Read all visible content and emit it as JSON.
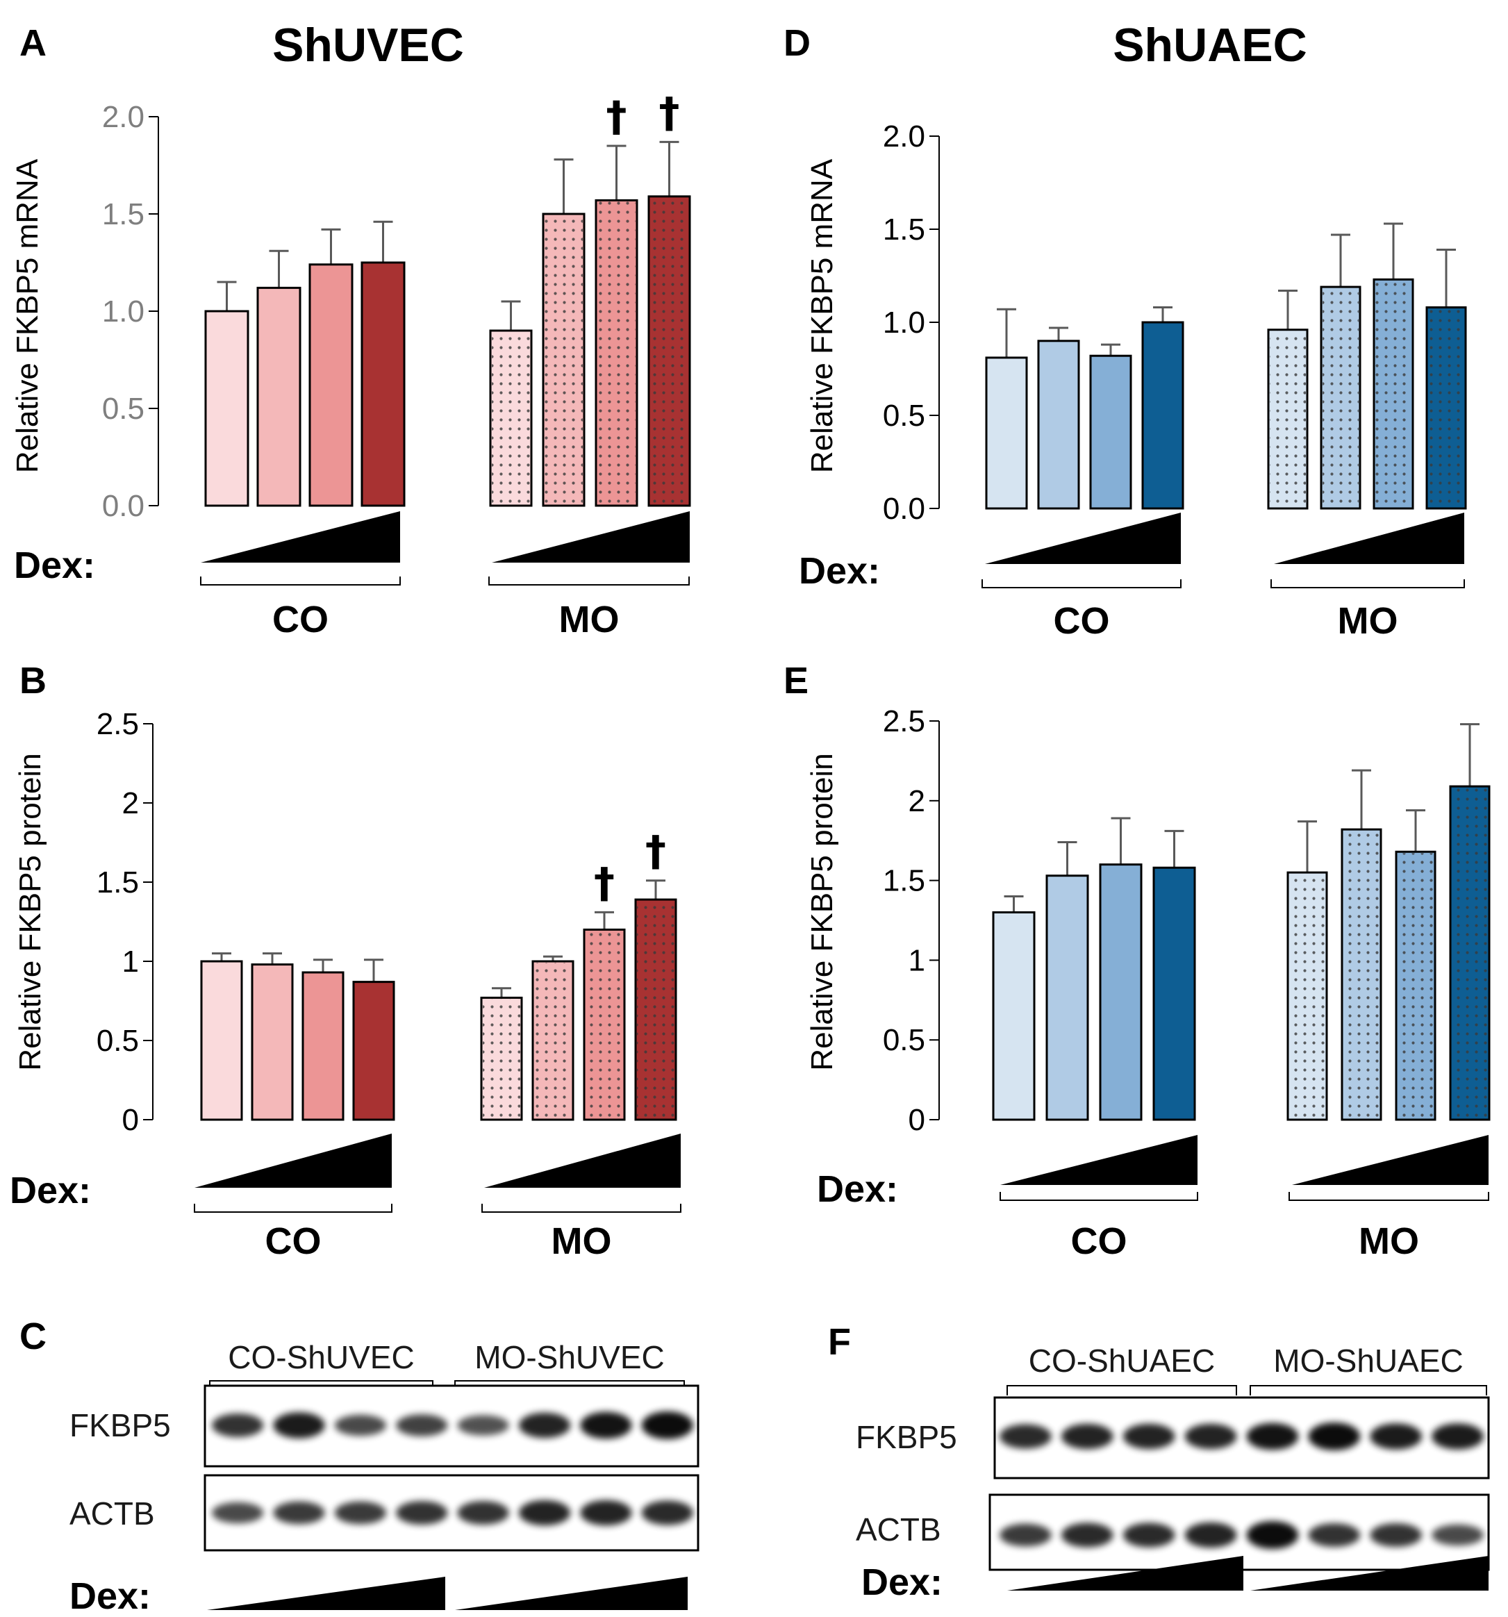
{
  "column_titles": {
    "left": "ShUVEC",
    "right": "ShUAEC"
  },
  "panel_letters": {
    "A": "A",
    "B": "B",
    "C": "C",
    "D": "D",
    "E": "E",
    "F": "F"
  },
  "labels": {
    "dex": "Dex:",
    "group_co": "CO",
    "group_mo": "MO",
    "dagger": "†"
  },
  "colors": {
    "red": [
      "#fadadc",
      "#f4b8b9",
      "#ec9595",
      "#a83232"
    ],
    "blue": [
      "#d6e4f1",
      "#b0cbe5",
      "#85afd6",
      "#0e5e93"
    ],
    "error_bar": "#595959"
  },
  "chart_data": [
    {
      "id": "A",
      "type": "bar",
      "title": "ShUVEC",
      "ylabel": "Relative  FKBP5 mRNA",
      "ylim": [
        0,
        2.0
      ],
      "yticks": [
        "0.0",
        "0.5",
        "1.0",
        "1.5",
        "2.0"
      ],
      "groups": [
        "CO",
        "MO"
      ],
      "series": [
        {
          "name": "CO",
          "values": [
            1.0,
            1.12,
            1.24,
            1.25
          ],
          "errors": [
            0.15,
            0.19,
            0.18,
            0.21
          ],
          "significance": [
            "",
            "",
            "",
            ""
          ]
        },
        {
          "name": "MO",
          "values": [
            0.9,
            1.5,
            1.57,
            1.59
          ],
          "errors": [
            0.15,
            0.28,
            0.28,
            0.28
          ],
          "significance": [
            "",
            "",
            "†",
            "†"
          ]
        }
      ]
    },
    {
      "id": "B",
      "type": "bar",
      "ylabel": "Relative  FKBP5 protein",
      "ylim": [
        0,
        2.5
      ],
      "yticks": [
        "0",
        "0.5",
        "1",
        "1.5",
        "2",
        "2.5"
      ],
      "groups": [
        "CO",
        "MO"
      ],
      "series": [
        {
          "name": "CO",
          "values": [
            1.0,
            0.98,
            0.93,
            0.87
          ],
          "errors": [
            0.05,
            0.07,
            0.08,
            0.14
          ],
          "significance": [
            "",
            "",
            "",
            ""
          ]
        },
        {
          "name": "MO",
          "values": [
            0.77,
            1.0,
            1.2,
            1.39
          ],
          "errors": [
            0.06,
            0.03,
            0.11,
            0.12
          ],
          "significance": [
            "",
            "",
            "†",
            "†"
          ]
        }
      ]
    },
    {
      "id": "D",
      "type": "bar",
      "title": "ShUAEC",
      "ylabel": "Relative  FKBP5 mRNA",
      "ylim": [
        0,
        2.0
      ],
      "yticks": [
        "0.0",
        "0.5",
        "1.0",
        "1.5",
        "2.0"
      ],
      "groups": [
        "CO",
        "MO"
      ],
      "series": [
        {
          "name": "CO",
          "values": [
            0.81,
            0.9,
            0.82,
            1.0
          ],
          "errors": [
            0.26,
            0.07,
            0.06,
            0.08
          ],
          "significance": [
            "",
            "",
            "",
            ""
          ]
        },
        {
          "name": "MO",
          "values": [
            0.96,
            1.19,
            1.23,
            1.08
          ],
          "errors": [
            0.21,
            0.28,
            0.3,
            0.31
          ],
          "significance": [
            "",
            "",
            "",
            ""
          ]
        }
      ]
    },
    {
      "id": "E",
      "type": "bar",
      "ylabel": "Relative  FKBP5 protein",
      "ylim": [
        0,
        2.5
      ],
      "yticks": [
        "0",
        "0.5",
        "1",
        "1.5",
        "2",
        "2.5"
      ],
      "groups": [
        "CO",
        "MO"
      ],
      "series": [
        {
          "name": "CO",
          "values": [
            1.3,
            1.53,
            1.6,
            1.58
          ],
          "errors": [
            0.1,
            0.21,
            0.29,
            0.23
          ],
          "significance": [
            "",
            "",
            "",
            ""
          ]
        },
        {
          "name": "MO",
          "values": [
            1.55,
            1.82,
            1.68,
            2.09
          ],
          "errors": [
            0.32,
            0.37,
            0.26,
            0.39
          ],
          "significance": [
            "",
            "",
            "",
            ""
          ]
        }
      ]
    }
  ],
  "blots": [
    {
      "id": "C",
      "group_labels": [
        "CO-ShUVEC",
        "MO-ShUVEC"
      ],
      "row_labels": [
        "FKBP5",
        "ACTB"
      ],
      "band_intensity": {
        "FKBP5": [
          0.75,
          0.9,
          0.6,
          0.65,
          0.55,
          0.85,
          0.95,
          1.0
        ],
        "ACTB": [
          0.6,
          0.7,
          0.7,
          0.75,
          0.75,
          0.85,
          0.85,
          0.8
        ]
      }
    },
    {
      "id": "F",
      "group_labels": [
        "CO-ShUAEC",
        "MO-ShUAEC"
      ],
      "row_labels": [
        "FKBP5",
        "ACTB"
      ],
      "band_intensity": {
        "FKBP5": [
          0.8,
          0.85,
          0.85,
          0.85,
          0.95,
          1.0,
          0.9,
          0.9
        ],
        "ACTB": [
          0.7,
          0.8,
          0.8,
          0.85,
          1.0,
          0.75,
          0.75,
          0.6
        ]
      }
    }
  ]
}
